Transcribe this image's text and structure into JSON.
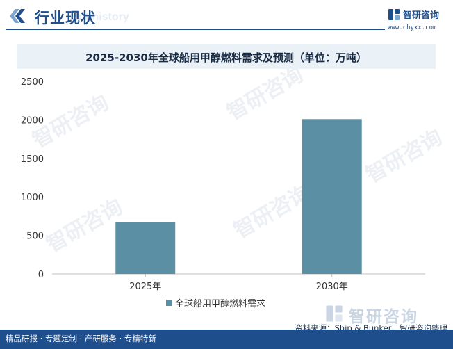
{
  "header": {
    "title": "行业现状",
    "ghost_text": "ent history"
  },
  "logo": {
    "name": "智研咨询",
    "url": "www.chyxx.com"
  },
  "watermark_text": "智研咨询",
  "chart_data": {
    "type": "bar",
    "title": "2025-2030年全球船用甲醇燃料需求及预测（单位：万吨）",
    "categories": [
      "2025年",
      "2030年"
    ],
    "series": [
      {
        "name": "全球船用甲醇燃料需求",
        "values": [
          670,
          2010
        ]
      }
    ],
    "ylim": [
      0,
      2500
    ],
    "yticks": [
      0,
      500,
      1000,
      1500,
      2000,
      2500
    ],
    "ytick_labels": [
      "0",
      "500",
      "1000",
      "1500",
      "2000",
      "2500"
    ],
    "grid": false,
    "legend_position": "bottom",
    "bar_color": "#5b8fa3"
  },
  "footer": {
    "left_text": "精品研报 · 专题定制 · 产研服务 · 专精特新",
    "source": "资料来源：Ship & Bunker、智研咨询整理",
    "logo_name": "智研咨询"
  }
}
